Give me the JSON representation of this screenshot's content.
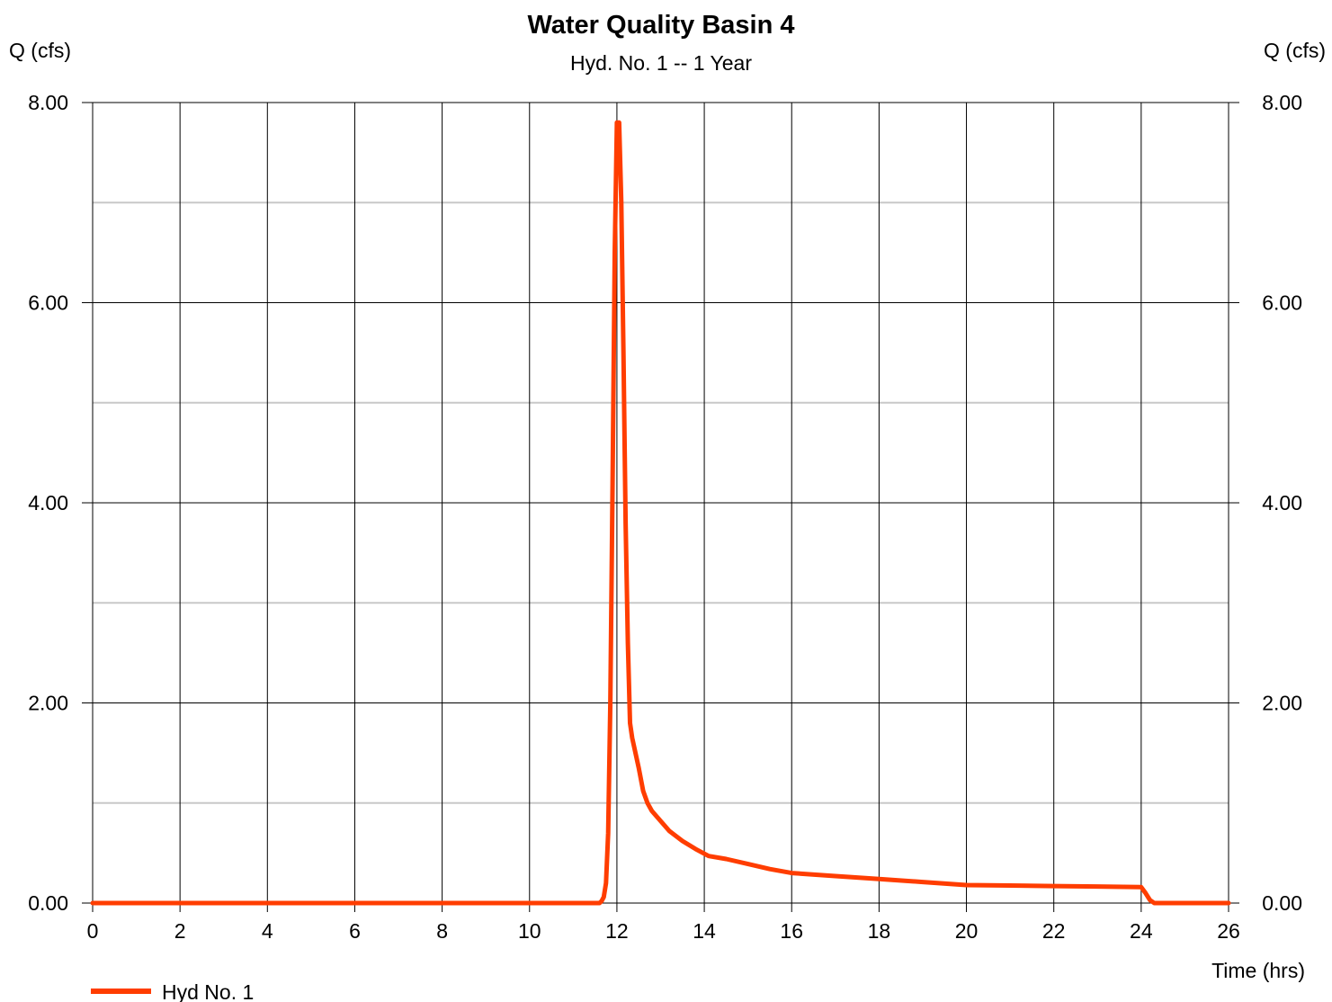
{
  "chart_data": {
    "type": "line",
    "title": "Water Quality Basin 4",
    "subtitle": "Hyd. No. 1 -- 1 Year",
    "ylabel_left": "Q (cfs)",
    "ylabel_right": "Q (cfs)",
    "xlabel": "Time (hrs)",
    "xlim": [
      0,
      26
    ],
    "ylim": [
      0,
      8
    ],
    "x_ticks": [
      0,
      2,
      4,
      6,
      8,
      10,
      12,
      14,
      16,
      18,
      20,
      22,
      24,
      26
    ],
    "x_tick_labels": [
      "0",
      "2",
      "4",
      "6",
      "8",
      "10",
      "12",
      "14",
      "16",
      "18",
      "20",
      "22",
      "24",
      "26"
    ],
    "y_ticks": [
      0,
      2,
      4,
      6,
      8
    ],
    "y_tick_labels": [
      "0.00",
      "2.00",
      "4.00",
      "6.00",
      "8.00"
    ],
    "y_minor_gridlines": [
      1,
      3,
      5,
      7
    ],
    "grid": true,
    "legend_position": "bottom-left",
    "colors": {
      "series": "#ff3d00",
      "major_grid": "#000000",
      "minor_grid": "#c8c8c8"
    },
    "series": [
      {
        "name": "Hyd No. 1",
        "x": [
          0,
          11.6,
          11.65,
          11.7,
          11.75,
          11.8,
          11.85,
          11.9,
          11.95,
          12.0,
          12.05,
          12.1,
          12.15,
          12.2,
          12.25,
          12.3,
          12.35,
          12.5,
          12.6,
          12.7,
          12.8,
          13.0,
          13.2,
          13.5,
          13.8,
          14.1,
          14.5,
          15.0,
          15.5,
          16.0,
          17.0,
          18.0,
          19.0,
          20.0,
          21.0,
          22.0,
          23.0,
          24.0,
          24.1,
          24.2,
          24.3,
          25.0,
          26.0
        ],
        "y": [
          0.0,
          0.0,
          0.02,
          0.06,
          0.2,
          0.7,
          2.0,
          4.2,
          6.5,
          7.8,
          7.8,
          7.0,
          5.5,
          3.8,
          2.6,
          1.8,
          1.65,
          1.35,
          1.12,
          1.0,
          0.92,
          0.82,
          0.72,
          0.62,
          0.54,
          0.47,
          0.44,
          0.39,
          0.34,
          0.3,
          0.27,
          0.24,
          0.21,
          0.18,
          0.175,
          0.17,
          0.165,
          0.16,
          0.1,
          0.03,
          0.0,
          0.0,
          0.0
        ]
      }
    ]
  }
}
